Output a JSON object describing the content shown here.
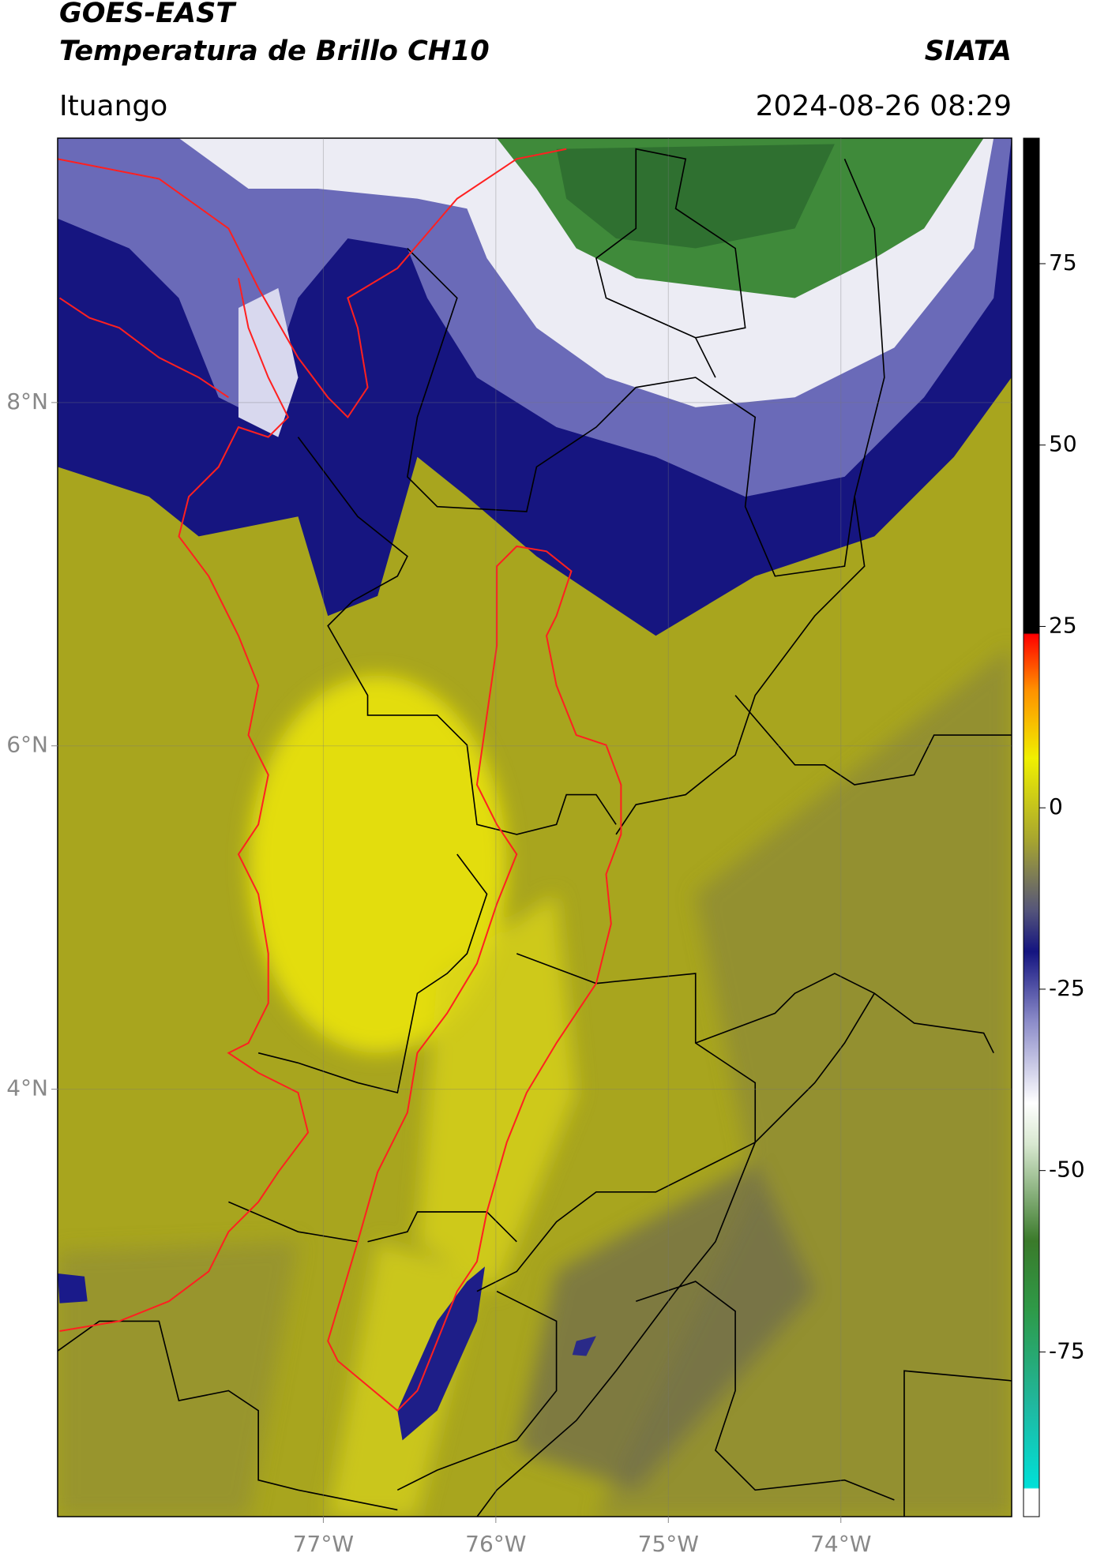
{
  "header": {
    "title": "GOES-EAST",
    "subtitle": "Temperatura de Brillo CH10",
    "brand": "SIATA",
    "location": "Ituango",
    "datetime": "2024-08-26 08:29"
  },
  "map": {
    "xlim": [
      -78.54,
      -73.01
    ],
    "ylim": [
      1.51,
      9.54
    ],
    "xticks": [
      {
        "value": -77,
        "label": "77°W"
      },
      {
        "value": -76,
        "label": "76°W"
      },
      {
        "value": -75,
        "label": "75°W"
      },
      {
        "value": -74,
        "label": "74°W"
      }
    ],
    "yticks": [
      {
        "value": 4,
        "label": "4°N"
      },
      {
        "value": 6,
        "label": "6°N"
      },
      {
        "value": 8,
        "label": "8°N"
      }
    ],
    "grid": true
  },
  "colorbar": {
    "ylim": [
      -97.7,
      92.3
    ],
    "yticks": [
      -75,
      -50,
      -25,
      0,
      25,
      50,
      75
    ]
  }
}
